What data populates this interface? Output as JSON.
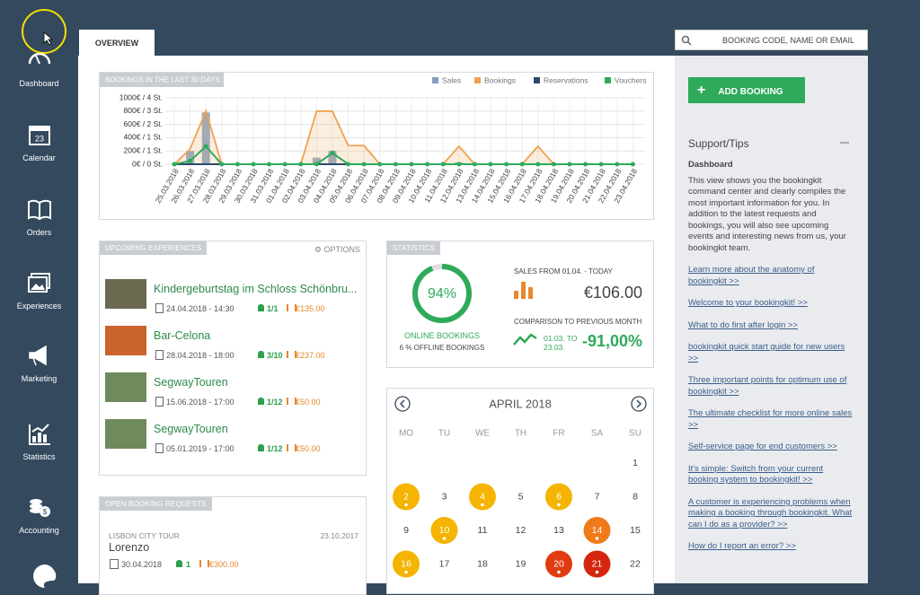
{
  "sidebar": {
    "items": [
      "Dashboard",
      "Calendar",
      "Orders",
      "Experiences",
      "Marketing",
      "Statistics",
      "Accounting"
    ]
  },
  "tab": "OVERVIEW",
  "search_placeholder": "BOOKING CODE, NAME OR EMAIL",
  "chart_data": {
    "type": "combo",
    "title": "BOOKINGS IN THE LAST 30 DAYS",
    "categories": [
      "25.03.2018",
      "26.03.2018",
      "27.03.2018",
      "28.03.2018",
      "29.03.2018",
      "30.03.2018",
      "31.03.2018",
      "01.04.2018",
      "02.04.2018",
      "03.04.2018",
      "04.04.2018",
      "05.04.2018",
      "06.04.2018",
      "07.04.2018",
      "08.04.2018",
      "09.04.2018",
      "10.04.2018",
      "11.04.2018",
      "12.04.2018",
      "13.04.2018",
      "14.04.2018",
      "15.04.2018",
      "16.04.2018",
      "17.04.2018",
      "18.04.2018",
      "19.04.2018",
      "20.04.2018",
      "21.04.2018",
      "22.04.2018",
      "23.04.2018"
    ],
    "series": [
      {
        "name": "Sales",
        "color": "#7f9fbf",
        "kind": "bar",
        "values": [
          0,
          200,
          780,
          0,
          0,
          0,
          0,
          0,
          0,
          100,
          200,
          0,
          0,
          0,
          0,
          0,
          0,
          0,
          30,
          0,
          0,
          0,
          0,
          0,
          0,
          0,
          0,
          0,
          0,
          0
        ]
      },
      {
        "name": "Bookings",
        "color": "#f0a050",
        "kind": "area",
        "values": [
          0,
          230,
          800,
          0,
          0,
          0,
          0,
          0,
          0,
          800,
          800,
          280,
          280,
          0,
          0,
          0,
          0,
          0,
          270,
          0,
          0,
          0,
          0,
          270,
          0,
          0,
          0,
          0,
          0,
          0
        ]
      },
      {
        "name": "Reservations",
        "color": "#2c4a6b",
        "kind": "line",
        "values": [
          0,
          0,
          0,
          0,
          0,
          0,
          0,
          0,
          0,
          0,
          0,
          0,
          0,
          0,
          0,
          0,
          0,
          0,
          0,
          0,
          0,
          0,
          0,
          0,
          0,
          0,
          0,
          0,
          0,
          0
        ]
      },
      {
        "name": "Vouchers",
        "color": "#2eaa5a",
        "kind": "line",
        "markers": true,
        "values": [
          0,
          50,
          270,
          0,
          0,
          0,
          0,
          0,
          0,
          0,
          170,
          0,
          0,
          0,
          0,
          0,
          0,
          0,
          0,
          0,
          0,
          0,
          0,
          0,
          0,
          0,
          0,
          0,
          0,
          0
        ]
      }
    ],
    "ylim": [
      0,
      1000
    ],
    "yticks": [
      {
        "value": 0,
        "label": "0€ / 0 St."
      },
      {
        "value": 200,
        "label": "200€ / 1 St."
      },
      {
        "value": 400,
        "label": "400€ / 1 St."
      },
      {
        "value": 600,
        "label": "600€ / 2 St."
      },
      {
        "value": 800,
        "label": "800€ / 3 St."
      },
      {
        "value": 1000,
        "label": "1000€ / 4 St."
      }
    ],
    "grid": true,
    "legend": "top-right"
  },
  "upcoming": {
    "title": "UPCOMING EXPERIENCES",
    "options": "OPTIONS",
    "items": [
      {
        "title": "Kindergeburtstag im Schloss Schönbru...",
        "date": "24.04.2018 - 14:30",
        "participants": "1/1",
        "price": "€135.00"
      },
      {
        "title": "Bar-Celona",
        "date": "28.04.2018 - 18:00",
        "participants": "3/10",
        "price": "€237.00"
      },
      {
        "title": "SegwayTouren",
        "date": "15.06.2018 - 17:00",
        "participants": "1/12",
        "price": "€50.00"
      },
      {
        "title": "SegwayTouren",
        "date": "05.01.2019 - 17:00",
        "participants": "1/12",
        "price": "€50.00"
      }
    ]
  },
  "statistics": {
    "title": "STATISTICS",
    "online_value": 94,
    "online_label": "94%",
    "online_text": "ONLINE BOOKINGS",
    "offline_text": "6 % OFFLINE BOOKINGS",
    "sales_label": "SALES FROM 01.04. - TODAY",
    "sales_value": "€106.00",
    "comparison_label": "COMPARISON TO PREVIOUS MONTH",
    "comparison_period": "01.03. TO 23.03.",
    "comparison_value": "-91,00%"
  },
  "calendar": {
    "month": "APRIL 2018",
    "weekdays": [
      "MO",
      "TU",
      "WE",
      "TH",
      "FR",
      "SA",
      "SU"
    ],
    "weeks": [
      [
        null,
        null,
        null,
        null,
        null,
        null,
        1
      ],
      [
        2,
        3,
        4,
        5,
        6,
        7,
        8
      ],
      [
        9,
        10,
        11,
        12,
        13,
        14,
        15
      ],
      [
        16,
        17,
        18,
        19,
        20,
        21,
        22
      ]
    ],
    "day_colors": [
      [
        null,
        null,
        null,
        null,
        null,
        null,
        null
      ],
      [
        "#f4b400",
        null,
        "#f4b400",
        null,
        "#f4b400",
        null,
        null
      ],
      [
        null,
        "#f4b400",
        null,
        null,
        null,
        "#f07a1a",
        null
      ],
      [
        "#f4b400",
        null,
        null,
        null,
        "#e03c12",
        "#d4260f",
        null
      ]
    ]
  },
  "requests": {
    "title": "OPEN BOOKING REQUESTS",
    "items": [
      {
        "tour": "LISBON CITY TOUR",
        "created": "23.10.2017",
        "name": "Lorenzo",
        "date": "30.04.2018",
        "participants": "1",
        "price": "€300.00"
      }
    ]
  },
  "support": {
    "add_booking": "ADD BOOKING",
    "title": "Support/Tips",
    "subtitle": "Dashboard",
    "text": "This view shows you the bookingkit command center and clearly compiles the most important information for you. In addition to the latest requests and bookings, you will also see upcoming events and interesting news from us, your bookingkit team.",
    "links": [
      "Learn more about the anatomy of bookingkit >>",
      "Welcome to your bookingkit! >>",
      "What to do first after login >>",
      "bookingkit quick start guide for new users >>",
      "Three important points for optimum use of bookingkit >>",
      "The ultimate checklist for more online sales >>",
      "Self-service page for end customers >>",
      "It's simple: Switch from your current booking system to bookingkit! >>",
      "A customer is experiencing problems when making a booking through bookingkit. What can I do as a provider? >>",
      "How do I report an error? >>"
    ]
  }
}
